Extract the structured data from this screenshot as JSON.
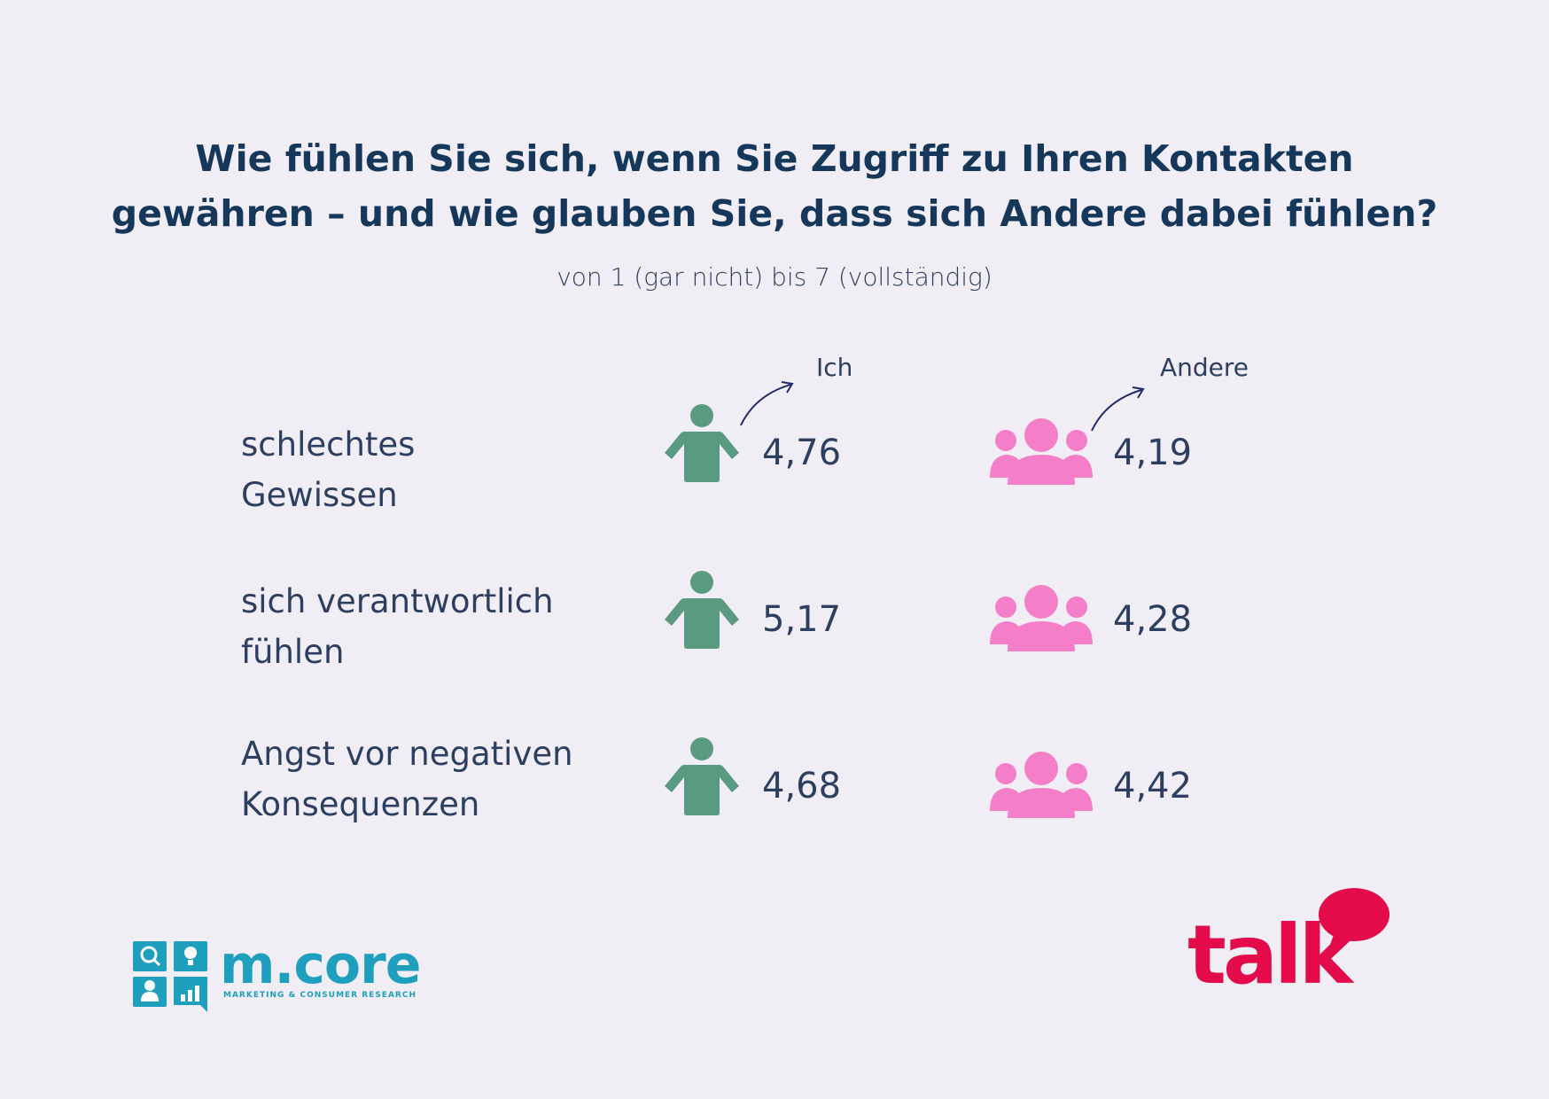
{
  "title_line1": "Wie fühlen Sie sich, wenn Sie Zugriff zu Ihren Kontakten",
  "title_line2": "gewähren – und wie glauben Sie, dass sich Andere dabei fühlen?",
  "subtitle": "von 1 (gar nicht) bis 7 (vollständig)",
  "colors": {
    "ich": "#5a9a80",
    "andere": "#f47ec7",
    "arrow": "#1e2a6b",
    "text": "#2d3f60",
    "title": "#15375a",
    "background": "#f1edf4",
    "mcore": "#1e9fbd",
    "talk": "#e30b4a"
  },
  "icons": {
    "ich": "person-icon",
    "andere": "group-icon"
  },
  "chart_data": {
    "type": "table",
    "title": "Wie fühlen Sie sich, wenn Sie Zugriff zu Ihren Kontakten gewähren – und wie glauben Sie, dass sich Andere dabei fühlen?",
    "subtitle": "von 1 (gar nicht) bis 7 (vollständig)",
    "columns": [
      "Ich",
      "Andere"
    ],
    "rows": [
      {
        "label_lines": [
          "schlechtes",
          "Gewissen"
        ],
        "values": [
          "4,76",
          "4,19"
        ]
      },
      {
        "label_lines": [
          "sich verantwortlich",
          "fühlen"
        ],
        "values": [
          "5,17",
          "4,28"
        ]
      },
      {
        "label_lines": [
          "Angst vor negativen",
          "Konsequenzen"
        ],
        "values": [
          "4,68",
          "4,42"
        ]
      }
    ]
  },
  "logos": {
    "left_name": "m.core",
    "left_tagline": "MARKETING & CONSUMER RESEARCH",
    "right_name": "talk"
  }
}
